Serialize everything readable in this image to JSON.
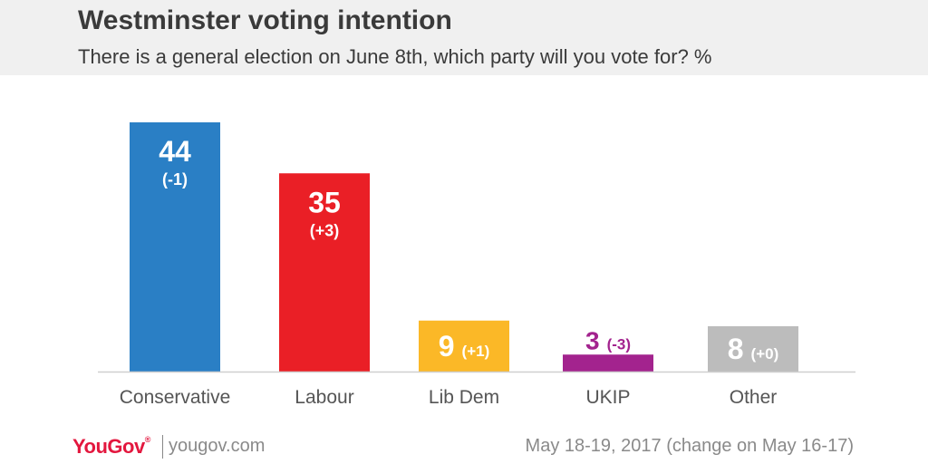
{
  "header": {
    "title": "Westminster voting intention",
    "subtitle": "There is a general election on June 8th, which party will you vote for? %"
  },
  "footer": {
    "logo": "YouGov",
    "url": "yougov.com",
    "date": "May 18-19, 2017 (change on May 16-17)"
  },
  "chart_data": {
    "type": "bar",
    "title": "Westminster voting intention",
    "ylabel": "%",
    "xlabel": "",
    "ylim": [
      0,
      44
    ],
    "grid": false,
    "categories": [
      "Conservative",
      "Labour",
      "Lib Dem",
      "UKIP",
      "Other"
    ],
    "values": [
      44,
      35,
      9,
      3,
      8
    ],
    "changes": [
      "(-1)",
      "(+3)",
      "(+1)",
      "(-3)",
      "(+0)"
    ],
    "colors": [
      "#2a7fc5",
      "#ea1f26",
      "#fbb827",
      "#a3238e",
      "#bcbcbc"
    ],
    "label_colors": [
      "#ffffff",
      "#ffffff",
      "#ffffff",
      "#a3238e",
      "#ffffff"
    ]
  }
}
